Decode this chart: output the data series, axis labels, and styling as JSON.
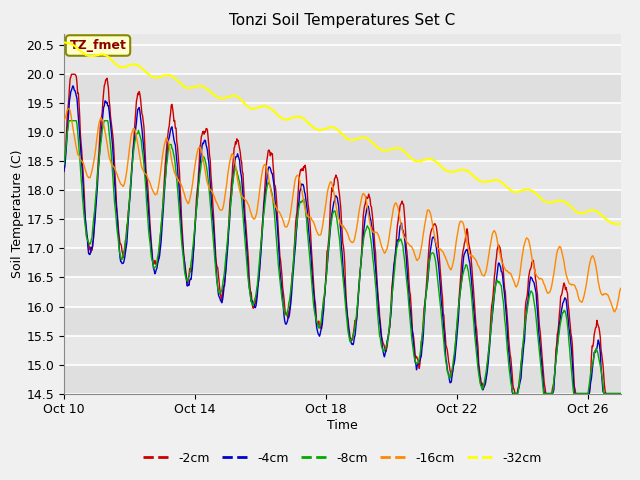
{
  "title": "Tonzi Soil Temperatures Set C",
  "xlabel": "Time",
  "ylabel": "Soil Temperature (C)",
  "annotation": "TZ_fmet",
  "ylim": [
    14.5,
    20.7
  ],
  "xlim_days": [
    0,
    17
  ],
  "x_ticks_pos": [
    0,
    4,
    8,
    12,
    16
  ],
  "x_tick_labels": [
    "Oct 10",
    "Oct 14",
    "Oct 18",
    "Oct 22",
    "Oct 26"
  ],
  "colors": {
    "-2cm": "#cc0000",
    "-4cm": "#0000cc",
    "-8cm": "#00aa00",
    "-16cm": "#ff8800",
    "-32cm": "#ffff00"
  },
  "fig_facecolor": "#f0f0f0",
  "plot_facecolor": "#e8e8e8",
  "yticks": [
    14.5,
    15.0,
    15.5,
    16.0,
    16.5,
    17.0,
    17.5,
    18.0,
    18.5,
    19.0,
    19.5,
    20.0,
    20.5
  ],
  "legend_labels": [
    "-2cm",
    "-4cm",
    "-8cm",
    "-16cm",
    "-32cm"
  ]
}
